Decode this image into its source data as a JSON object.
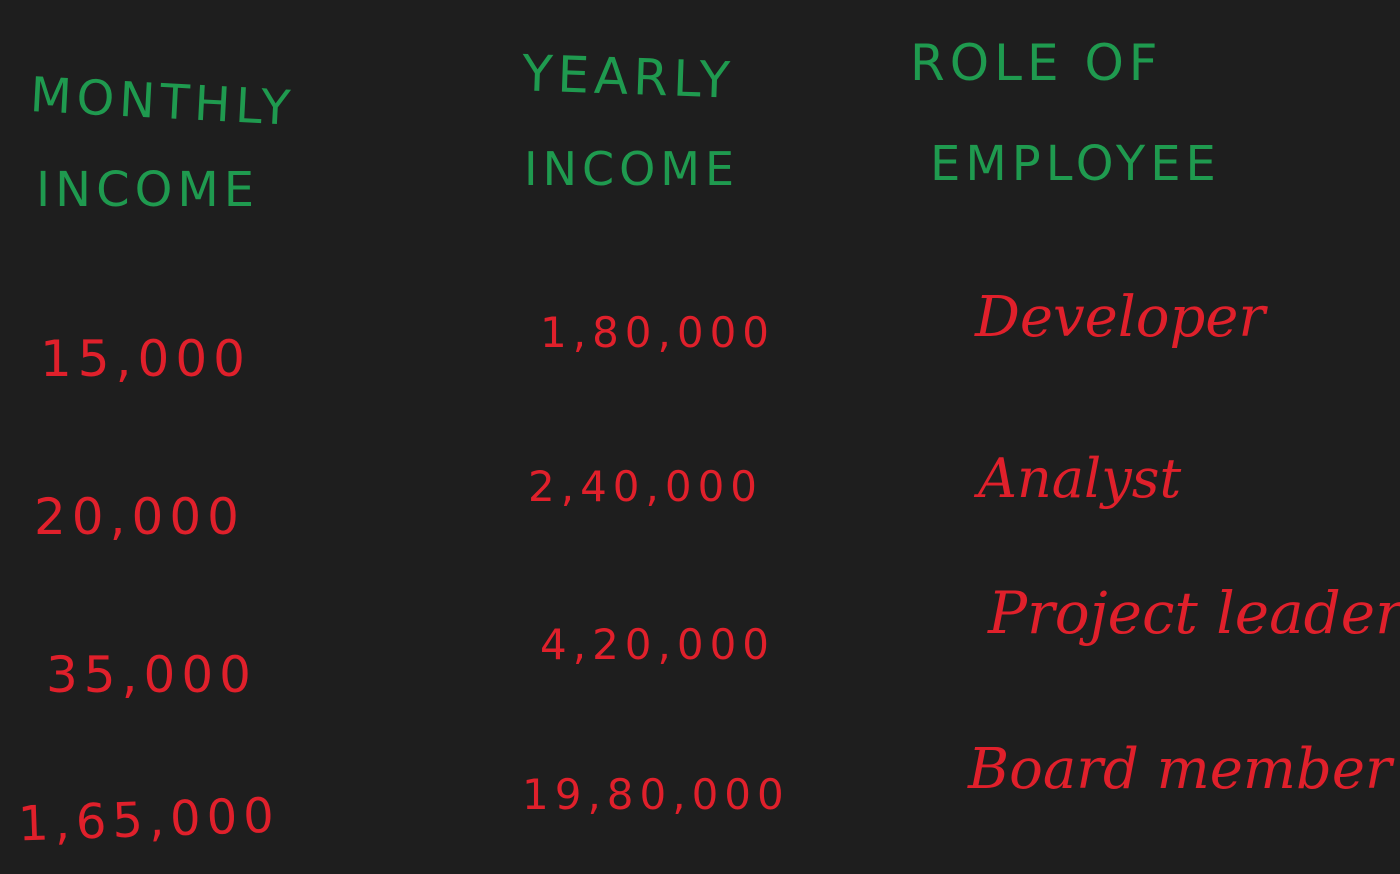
{
  "headers": {
    "monthly": [
      "MONTHLY",
      "INCOME"
    ],
    "yearly": [
      "YEARLY",
      "INCOME"
    ],
    "role": [
      "ROLE OF",
      "EMPLOYEE"
    ]
  },
  "rows": [
    {
      "monthly": "15,000",
      "yearly": "1,80,000",
      "role": "Developer"
    },
    {
      "monthly": "20,000",
      "yearly": "2,40,000",
      "role": "Analyst"
    },
    {
      "monthly": "35,000",
      "yearly": "4,20,000",
      "role": "Project leader"
    },
    {
      "monthly": "1,65,000",
      "yearly": "19,80,000",
      "role": "Board member"
    }
  ],
  "colors": {
    "background": "#1e1e1e",
    "header": "#1f9a4f",
    "values": "#e0202b"
  }
}
